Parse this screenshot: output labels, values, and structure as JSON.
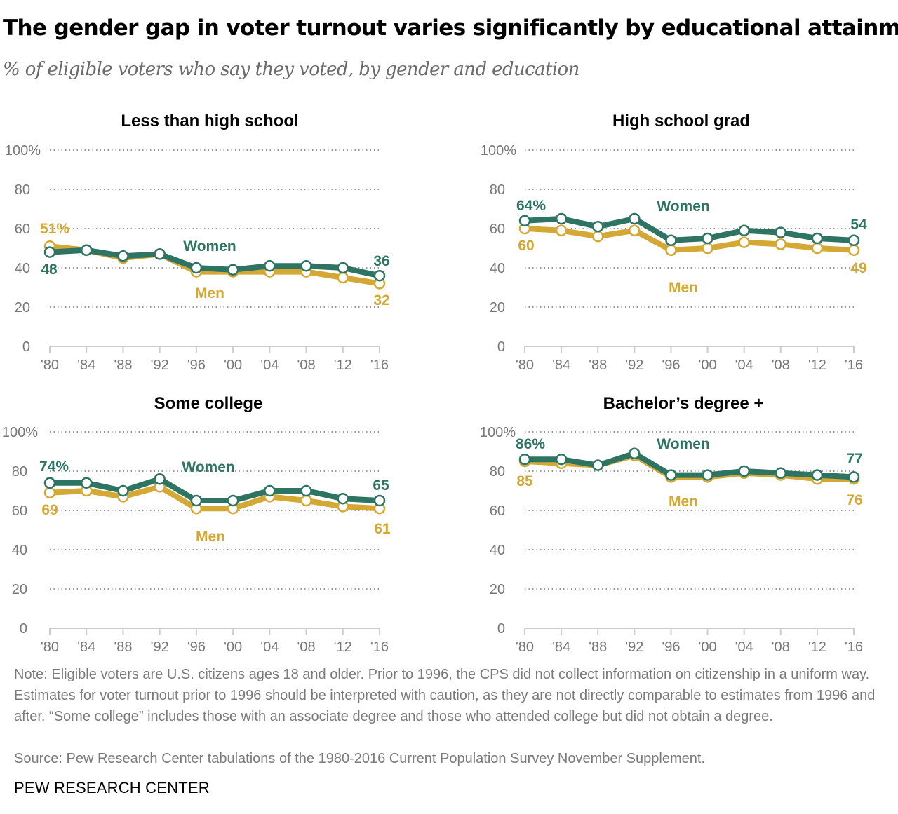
{
  "title": "The gender gap in voter turnout varies significantly by educational attainment",
  "subtitle": "% of eligible voters who say they voted, by gender and education",
  "note": "Note: Eligible voters are U.S. citizens ages 18 and older. Prior to 1996, the CPS did not collect information on citizenship in a uniform way. Estimates for voter turnout prior to 1996 should be interpreted with caution, as they are not directly comparable to estimates from 1996 and after. “Some college” includes those with an associate degree and those who attended college but did not obtain a degree.",
  "source": "Source: Pew Research Center tabulations of the 1980-2016 Current Population Survey November Supplement.",
  "brand": "PEW RESEARCH CENTER",
  "colors": {
    "women": "#2e7463",
    "men": "#d3a834",
    "grid": "#9a9a9a",
    "axis_text": "#777777"
  },
  "chart_data": [
    {
      "type": "line",
      "title": "Less than high school",
      "categories": [
        "'80",
        "'84",
        "'88",
        "'92",
        "'96",
        "'00",
        "'04",
        "'08",
        "'12",
        "'16"
      ],
      "yticks": [
        "0",
        "20",
        "40",
        "60",
        "80",
        "100%"
      ],
      "ylim": [
        0,
        100
      ],
      "grid": true,
      "series": [
        {
          "name": "Women",
          "values": [
            48,
            49,
            46,
            47,
            40,
            39,
            41,
            41,
            40,
            36
          ],
          "start_label": "48",
          "end_label": "36"
        },
        {
          "name": "Men",
          "values": [
            51,
            49,
            45,
            47,
            38,
            38,
            38,
            38,
            35,
            32
          ],
          "start_label": "51%",
          "end_label": "32"
        }
      ]
    },
    {
      "type": "line",
      "title": "High school grad",
      "categories": [
        "'80",
        "'84",
        "'88",
        "'92",
        "'96",
        "'00",
        "'04",
        "'08",
        "'12",
        "'16"
      ],
      "yticks": [
        "0",
        "20",
        "40",
        "60",
        "80",
        "100%"
      ],
      "ylim": [
        0,
        100
      ],
      "grid": true,
      "series": [
        {
          "name": "Women",
          "values": [
            64,
            65,
            61,
            65,
            54,
            55,
            59,
            58,
            55,
            54
          ],
          "start_label": "64%",
          "end_label": "54"
        },
        {
          "name": "Men",
          "values": [
            60,
            59,
            56,
            59,
            49,
            50,
            53,
            52,
            50,
            49
          ],
          "start_label": "60",
          "end_label": "49"
        }
      ]
    },
    {
      "type": "line",
      "title": "Some college",
      "categories": [
        "'80",
        "'84",
        "'88",
        "'92",
        "'96",
        "'00",
        "'04",
        "'08",
        "'12",
        "'16"
      ],
      "yticks": [
        "0",
        "20",
        "40",
        "60",
        "80",
        "100%"
      ],
      "ylim": [
        0,
        100
      ],
      "grid": true,
      "series": [
        {
          "name": "Women",
          "values": [
            74,
            74,
            70,
            76,
            65,
            65,
            70,
            70,
            66,
            65
          ],
          "start_label": "74%",
          "end_label": "65"
        },
        {
          "name": "Men",
          "values": [
            69,
            70,
            67,
            72,
            61,
            61,
            67,
            65,
            62,
            61
          ],
          "start_label": "69",
          "end_label": "61"
        }
      ]
    },
    {
      "type": "line",
      "title": "Bachelor’s degree +",
      "categories": [
        "'80",
        "'84",
        "'88",
        "'92",
        "'96",
        "'00",
        "'04",
        "'08",
        "'12",
        "'16"
      ],
      "yticks": [
        "0",
        "20",
        "40",
        "60",
        "80",
        "100%"
      ],
      "ylim": [
        0,
        100
      ],
      "grid": true,
      "series": [
        {
          "name": "Women",
          "values": [
            86,
            86,
            83,
            89,
            78,
            78,
            80,
            79,
            78,
            77
          ],
          "start_label": "86%",
          "end_label": "77"
        },
        {
          "name": "Men",
          "values": [
            85,
            84,
            83,
            88,
            77,
            77,
            79,
            78,
            76,
            76
          ],
          "start_label": "85",
          "end_label": "76"
        }
      ]
    }
  ]
}
